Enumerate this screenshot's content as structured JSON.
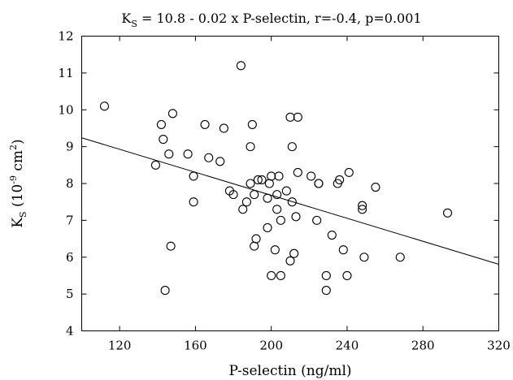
{
  "chart_data": {
    "type": "scatter",
    "title": {
      "k": "K",
      "sub": "S",
      "rest": " = 10.8 - 0.02 x P-selectin, r=-0.4, p=0.001"
    },
    "xlabel": "P-selectin (ng/ml)",
    "ylabel": {
      "k": "K",
      "sub": "S",
      "open": " (10",
      "exp1": "-9",
      "mid": " cm",
      "exp2": "2",
      "close": ")"
    },
    "xlim": [
      100,
      320
    ],
    "ylim": [
      4,
      12
    ],
    "x_ticks": [
      120,
      160,
      200,
      240,
      280,
      320
    ],
    "y_ticks": [
      4,
      5,
      6,
      7,
      8,
      9,
      10,
      11,
      12
    ],
    "grid": false,
    "legend": "none",
    "regression": {
      "intercept": 10.8,
      "slope": -0.0156
    },
    "points": [
      {
        "x": 112,
        "y": 10.1
      },
      {
        "x": 139,
        "y": 8.5
      },
      {
        "x": 142,
        "y": 9.6
      },
      {
        "x": 143,
        "y": 9.2
      },
      {
        "x": 144,
        "y": 5.1
      },
      {
        "x": 146,
        "y": 8.8
      },
      {
        "x": 147,
        "y": 6.3
      },
      {
        "x": 148,
        "y": 9.9
      },
      {
        "x": 156,
        "y": 8.8
      },
      {
        "x": 159,
        "y": 8.2
      },
      {
        "x": 159,
        "y": 7.5
      },
      {
        "x": 165,
        "y": 9.6
      },
      {
        "x": 167,
        "y": 8.7
      },
      {
        "x": 173,
        "y": 8.6
      },
      {
        "x": 175,
        "y": 9.5
      },
      {
        "x": 178,
        "y": 7.8
      },
      {
        "x": 180,
        "y": 7.7
      },
      {
        "x": 184,
        "y": 11.2
      },
      {
        "x": 185,
        "y": 7.3
      },
      {
        "x": 187,
        "y": 7.5
      },
      {
        "x": 189,
        "y": 9.0
      },
      {
        "x": 189,
        "y": 8.0
      },
      {
        "x": 190,
        "y": 9.6
      },
      {
        "x": 191,
        "y": 7.7
      },
      {
        "x": 191,
        "y": 6.3
      },
      {
        "x": 192,
        "y": 6.5
      },
      {
        "x": 193,
        "y": 8.1
      },
      {
        "x": 195,
        "y": 8.1
      },
      {
        "x": 198,
        "y": 7.6
      },
      {
        "x": 198,
        "y": 6.8
      },
      {
        "x": 199,
        "y": 8.0
      },
      {
        "x": 200,
        "y": 8.2
      },
      {
        "x": 200,
        "y": 5.5
      },
      {
        "x": 202,
        "y": 6.2
      },
      {
        "x": 203,
        "y": 7.7
      },
      {
        "x": 203,
        "y": 7.3
      },
      {
        "x": 204,
        "y": 8.2
      },
      {
        "x": 205,
        "y": 7.0
      },
      {
        "x": 205,
        "y": 5.5
      },
      {
        "x": 208,
        "y": 7.8
      },
      {
        "x": 210,
        "y": 9.8
      },
      {
        "x": 210,
        "y": 5.9
      },
      {
        "x": 211,
        "y": 9.0
      },
      {
        "x": 211,
        "y": 7.5
      },
      {
        "x": 212,
        "y": 6.1
      },
      {
        "x": 213,
        "y": 7.1
      },
      {
        "x": 214,
        "y": 9.8
      },
      {
        "x": 214,
        "y": 8.3
      },
      {
        "x": 221,
        "y": 8.2
      },
      {
        "x": 224,
        "y": 7.0
      },
      {
        "x": 225,
        "y": 8.0
      },
      {
        "x": 225,
        "y": 8.0
      },
      {
        "x": 229,
        "y": 5.5
      },
      {
        "x": 229,
        "y": 5.1
      },
      {
        "x": 232,
        "y": 6.6
      },
      {
        "x": 235,
        "y": 8.0
      },
      {
        "x": 236,
        "y": 8.1
      },
      {
        "x": 238,
        "y": 6.2
      },
      {
        "x": 240,
        "y": 5.5
      },
      {
        "x": 241,
        "y": 8.3
      },
      {
        "x": 248,
        "y": 7.4
      },
      {
        "x": 248,
        "y": 7.3
      },
      {
        "x": 249,
        "y": 6.0
      },
      {
        "x": 255,
        "y": 7.9
      },
      {
        "x": 268,
        "y": 6.0
      },
      {
        "x": 293,
        "y": 7.2
      }
    ]
  }
}
